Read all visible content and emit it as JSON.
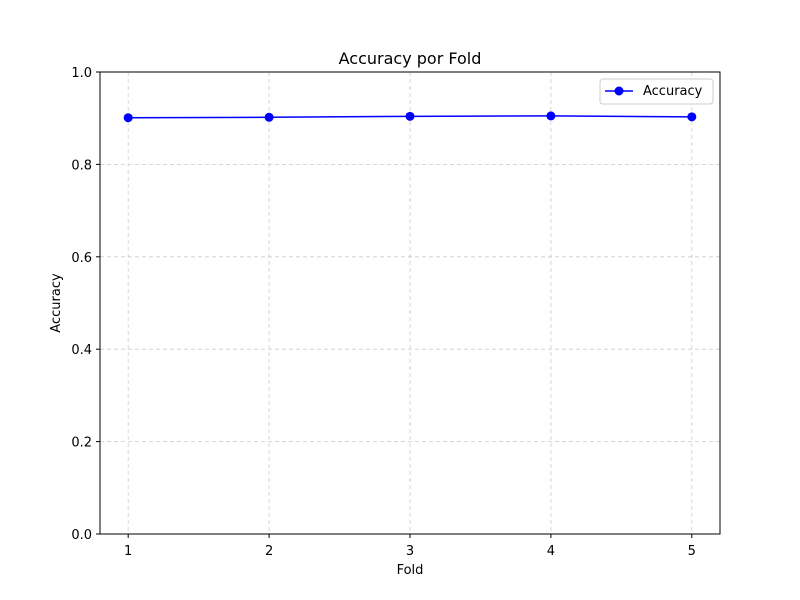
{
  "chart_data": {
    "type": "line",
    "title": "Accuracy por Fold",
    "xlabel": "Fold",
    "ylabel": "Accuracy",
    "x": [
      1,
      2,
      3,
      4,
      5
    ],
    "xlim": [
      0.8,
      5.2
    ],
    "ylim": [
      0.0,
      1.0
    ],
    "xticks": [
      "1",
      "2",
      "3",
      "4",
      "5"
    ],
    "yticks": [
      "0.0",
      "0.2",
      "0.4",
      "0.6",
      "0.8",
      "1.0"
    ],
    "grid": true,
    "legend_position": "top-right",
    "series": [
      {
        "name": "Accuracy",
        "color": "#0000ff",
        "marker": "circle",
        "values": [
          0.901,
          0.902,
          0.904,
          0.905,
          0.903
        ]
      }
    ]
  }
}
